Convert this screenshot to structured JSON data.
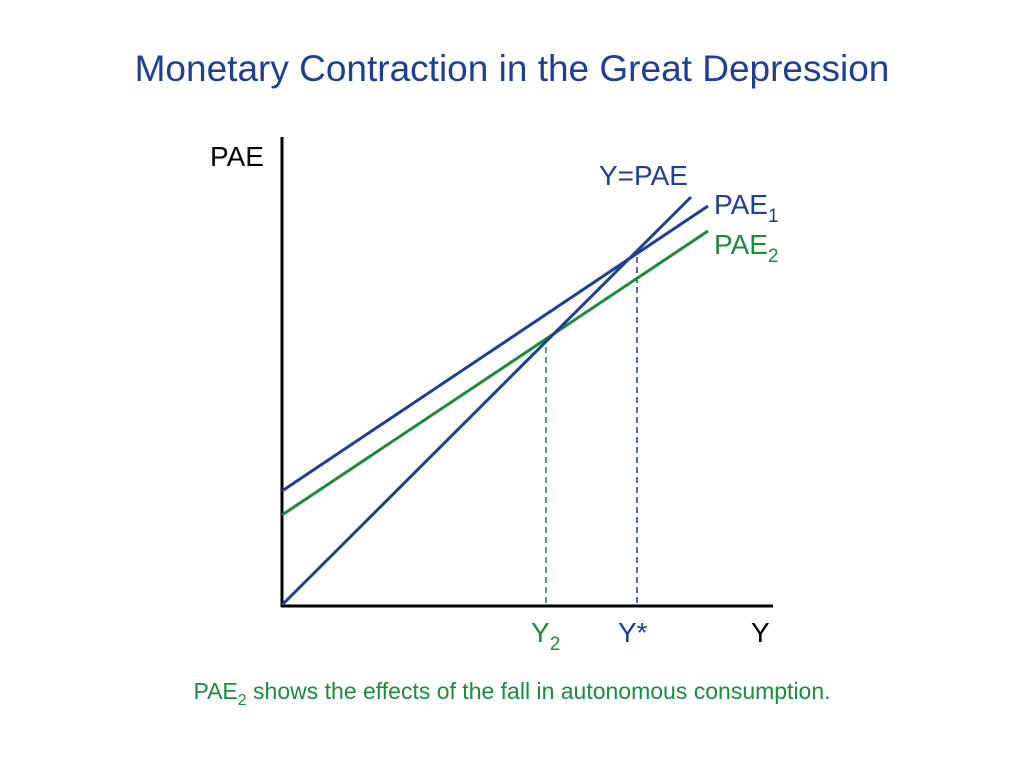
{
  "title": "Monetary Contraction in the Great Depression",
  "axes": {
    "y_label": "PAE",
    "x_label": "Y"
  },
  "lines": {
    "forty_five": {
      "label": "Y=PAE",
      "color": "#1f3f93"
    },
    "pae1": {
      "label_main": "PAE",
      "label_sub": "1",
      "color": "#1f3f93"
    },
    "pae2": {
      "label_main": "PAE",
      "label_sub": "2",
      "color": "#1a8c3c"
    }
  },
  "markers": {
    "y2": {
      "main": "Y",
      "sub": "2",
      "color": "#1a8c3c"
    },
    "ystar": {
      "label": "Y*",
      "color": "#1f3f93"
    }
  },
  "caption": {
    "prefix_main": "PAE",
    "prefix_sub": "2",
    "text": " shows the effects of the fall in autonomous consumption."
  },
  "colors": {
    "title": "#1f3f93",
    "axis": "#000000",
    "blue": "#1f3f93",
    "green": "#1a8c3c"
  }
}
